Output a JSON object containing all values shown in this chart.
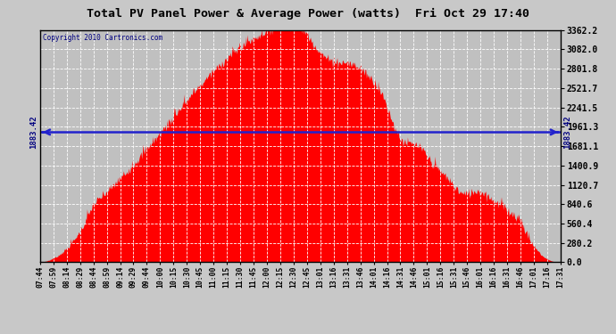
{
  "title": "Total PV Panel Power & Average Power (watts)  Fri Oct 29 17:40",
  "copyright": "Copyright 2010 Cartronics.com",
  "average_power": 1883.42,
  "ymax": 3362.2,
  "yticks": [
    0.0,
    280.2,
    560.4,
    840.6,
    1120.7,
    1400.9,
    1681.1,
    1961.3,
    2241.5,
    2521.7,
    2801.8,
    3082.0,
    3362.2
  ],
  "ytick_labels": [
    "0.0",
    "280.2",
    "560.4",
    "840.6",
    "1120.7",
    "1400.9",
    "1681.1",
    "1961.3",
    "2241.5",
    "2521.7",
    "2801.8",
    "3082.0",
    "3362.2"
  ],
  "avg_label": "1883.42",
  "bar_color": "#ff0000",
  "line_color": "#2222cc",
  "background_color": "#c8c8c8",
  "plot_bg_color": "#c0c0c0",
  "grid_color": "#ffffff",
  "border_color": "#000000",
  "title_color": "#000000",
  "xtick_labels": [
    "07:44",
    "07:59",
    "08:14",
    "08:29",
    "08:44",
    "08:59",
    "09:14",
    "09:29",
    "09:44",
    "10:00",
    "10:15",
    "10:30",
    "10:45",
    "11:00",
    "11:15",
    "11:30",
    "11:45",
    "12:00",
    "12:15",
    "12:30",
    "12:45",
    "13:01",
    "13:16",
    "13:31",
    "13:46",
    "14:01",
    "14:16",
    "14:31",
    "14:46",
    "15:01",
    "15:16",
    "15:31",
    "15:46",
    "16:01",
    "16:16",
    "16:31",
    "16:46",
    "17:01",
    "17:16",
    "17:31"
  ]
}
